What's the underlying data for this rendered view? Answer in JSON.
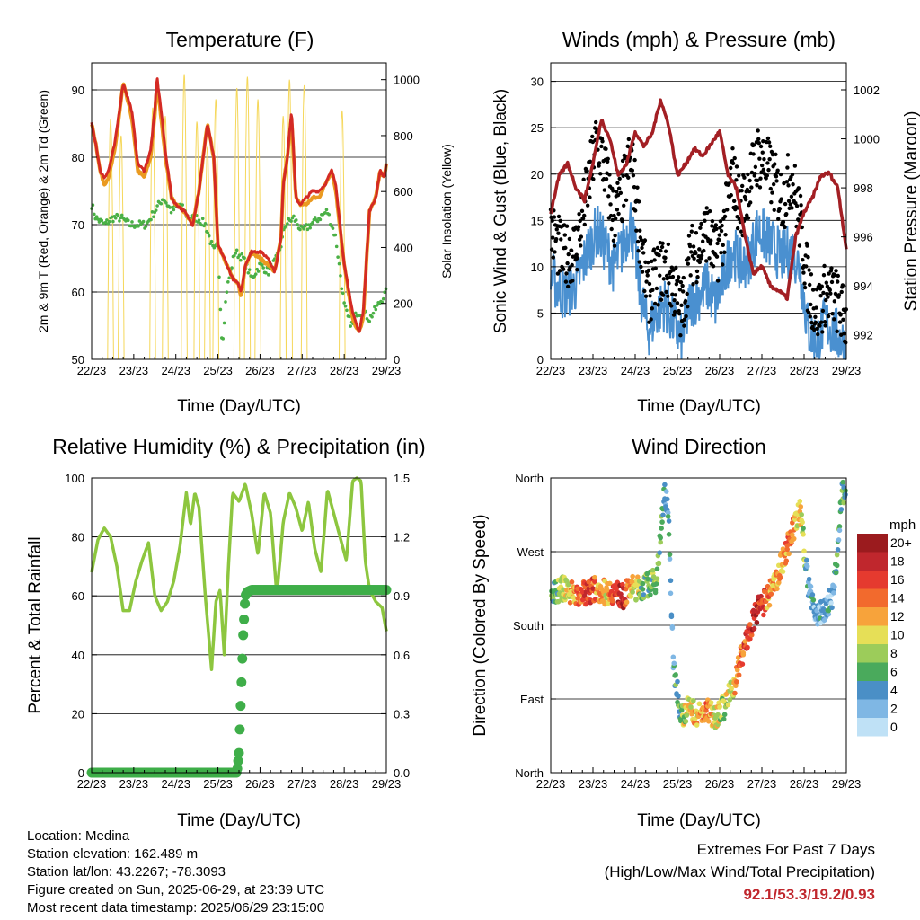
{
  "x_tick_labels": [
    "22/23",
    "23/23",
    "24/23",
    "25/23",
    "26/23",
    "27/23",
    "28/23",
    "29/23"
  ],
  "xlabel": "Time (Day/UTC)",
  "chart_data": [
    {
      "id": "temperature",
      "type": "line",
      "title": "Temperature (F)",
      "xlabel": "Time (Day/UTC)",
      "ylabel": "2m & 9m T (Red, Orange) & 2m Td (Green)",
      "ylabel_right": "Solar Insolation (Yellow)",
      "ylim": [
        50,
        94
      ],
      "yticks": [
        50,
        60,
        70,
        80,
        90
      ],
      "ylim_right": [
        0,
        1060
      ],
      "yticks_right": [
        0,
        200,
        400,
        600,
        800,
        1000
      ],
      "xlim": [
        0,
        7
      ],
      "grid": true,
      "series": [
        {
          "name": "2m T",
          "color": "#ea9a20",
          "x": [
            0,
            0.1,
            0.2,
            0.3,
            0.4,
            0.55,
            0.75,
            0.95,
            1.1,
            1.25,
            1.4,
            1.5,
            1.55,
            1.65,
            1.75,
            1.9,
            2.0,
            2.2,
            2.4,
            2.55,
            2.75,
            2.9,
            3.0,
            3.15,
            3.35,
            3.5,
            3.55,
            3.65,
            3.8,
            4.0,
            4.2,
            4.35,
            4.5,
            4.55,
            4.65,
            4.75,
            4.85,
            4.95,
            5.1,
            5.25,
            5.4,
            5.55,
            5.7,
            5.8,
            6.0,
            6.2,
            6.35,
            6.45,
            6.6,
            6.75,
            6.85,
            6.95,
            7.0
          ],
          "values": [
            85,
            82,
            78,
            76,
            77,
            81,
            91,
            86,
            78,
            77,
            80,
            86,
            91,
            86,
            80,
            74,
            73,
            72,
            70,
            75,
            85,
            80,
            67,
            65,
            62,
            61,
            59,
            64,
            66,
            65,
            64,
            63,
            68,
            76,
            80,
            86,
            74,
            73,
            73,
            74,
            74,
            76,
            78,
            75,
            64,
            56,
            54,
            56,
            72,
            74,
            78,
            77,
            79
          ]
        },
        {
          "name": "9m T",
          "color": "#d42a24",
          "x": [
            0,
            0.1,
            0.2,
            0.3,
            0.4,
            0.55,
            0.75,
            0.95,
            1.1,
            1.25,
            1.4,
            1.5,
            1.55,
            1.65,
            1.75,
            1.9,
            2.0,
            2.2,
            2.4,
            2.55,
            2.75,
            2.9,
            3.0,
            3.15,
            3.35,
            3.5,
            3.55,
            3.65,
            3.8,
            4.0,
            4.2,
            4.35,
            4.5,
            4.55,
            4.65,
            4.75,
            4.85,
            4.95,
            5.1,
            5.25,
            5.4,
            5.55,
            5.7,
            5.8,
            6.0,
            6.2,
            6.35,
            6.45,
            6.6,
            6.75,
            6.85,
            6.95,
            7.0
          ],
          "values": [
            85,
            82,
            78,
            77,
            78,
            82,
            91,
            87,
            79,
            78,
            81,
            87,
            92,
            87,
            81,
            74,
            73,
            72,
            70,
            75,
            85,
            80,
            67,
            65,
            62,
            61,
            60,
            64,
            66,
            66,
            65,
            63,
            68,
            76,
            80,
            87,
            74,
            73,
            74,
            75,
            75,
            76,
            78,
            76,
            64,
            57,
            54,
            57,
            72,
            74,
            78,
            77,
            79
          ]
        },
        {
          "name": "2m Td",
          "color": "#4ab046",
          "x": [
            0,
            0.1,
            0.3,
            0.5,
            0.7,
            0.9,
            1.1,
            1.3,
            1.5,
            1.7,
            1.9,
            2.1,
            2.3,
            2.5,
            2.7,
            2.8,
            2.9,
            3.0,
            3.1,
            3.2,
            3.4,
            3.6,
            3.8,
            4.0,
            4.2,
            4.4,
            4.5,
            4.6,
            4.8,
            5.0,
            5.2,
            5.4,
            5.6,
            5.8,
            6.0,
            6.1,
            6.2,
            6.3,
            6.45,
            6.6,
            6.8,
            7.0
          ],
          "values": [
            73,
            71,
            70,
            71,
            71,
            70,
            70,
            70,
            72,
            74,
            72,
            73,
            71,
            71,
            70,
            68,
            66,
            67,
            52,
            60,
            66,
            65,
            62,
            64,
            63,
            65,
            67,
            70,
            71,
            69,
            70,
            71,
            72,
            68,
            58,
            56,
            55,
            57,
            57,
            56,
            58,
            60
          ]
        },
        {
          "name": "Solar Insolation",
          "axis": "right",
          "color": "#f5d75a",
          "peaks": [
            860,
            800,
            900,
            870,
            1020,
            850,
            760,
            930,
            970,
            1010,
            930,
            870,
            1000,
            980,
            890
          ],
          "peak_x": [
            0.45,
            0.7,
            1.45,
            1.75,
            2.2,
            2.5,
            2.75,
            2.95,
            3.45,
            3.7,
            3.95,
            4.55,
            4.7,
            5.05,
            5.95
          ]
        }
      ]
    },
    {
      "id": "winds",
      "type": "scatter",
      "title": "Winds (mph) & Pressure (mb)",
      "xlabel": "Time (Day/UTC)",
      "ylabel": "Sonic Wind & Gust (Blue, Black)",
      "ylabel_right": "Station Pressure (Maroon)",
      "ylim": [
        0,
        32
      ],
      "yticks": [
        0,
        5,
        10,
        15,
        20,
        25,
        30
      ],
      "ylim_right": [
        991,
        1003.1
      ],
      "yticks_right": [
        992,
        994,
        996,
        998,
        1000,
        1002
      ],
      "xlim": [
        0,
        7
      ],
      "grid": true,
      "series": [
        {
          "name": "Sonic Wind",
          "color": "#4a90d0",
          "x": [
            0,
            0.3,
            0.6,
            0.9,
            1.1,
            1.3,
            1.5,
            1.7,
            1.9,
            2.1,
            2.3,
            2.5,
            2.7,
            2.9,
            3.1,
            3.3,
            3.5,
            3.7,
            3.9,
            4.1,
            4.3,
            4.5,
            4.7,
            4.9,
            5.1,
            5.3,
            5.5,
            5.7,
            5.9,
            6.1,
            6.3,
            6.5,
            6.7,
            6.9,
            7.0
          ],
          "values": [
            9,
            7,
            8,
            12,
            14,
            12,
            10,
            12,
            15,
            8,
            3,
            5,
            6,
            4,
            2,
            6,
            7,
            8,
            6,
            9,
            12,
            10,
            11,
            14,
            13,
            12,
            11,
            12,
            10,
            3,
            2,
            4,
            3,
            2,
            1
          ]
        },
        {
          "name": "Gust",
          "color": "#000000",
          "x": [
            0,
            0.3,
            0.6,
            0.9,
            1.1,
            1.3,
            1.5,
            1.7,
            1.9,
            2.1,
            2.3,
            2.5,
            2.7,
            2.9,
            3.1,
            3.3,
            3.5,
            3.7,
            3.9,
            4.1,
            4.3,
            4.5,
            4.7,
            4.9,
            5.1,
            5.3,
            5.5,
            5.7,
            5.9,
            6.1,
            6.3,
            6.5,
            6.7,
            6.9,
            7.0
          ],
          "values": [
            14,
            11,
            12,
            19,
            24,
            20,
            15,
            18,
            22,
            14,
            7,
            9,
            10,
            8,
            5,
            11,
            12,
            14,
            11,
            14,
            20,
            16,
            19,
            22,
            21,
            19,
            17,
            20,
            15,
            8,
            5,
            7,
            7,
            5,
            4
          ]
        },
        {
          "name": "Station Pressure",
          "axis": "right",
          "color": "#a31f24",
          "x": [
            0,
            0.2,
            0.4,
            0.6,
            0.8,
            1.0,
            1.2,
            1.4,
            1.6,
            1.8,
            2.0,
            2.2,
            2.4,
            2.6,
            2.8,
            3.0,
            3.2,
            3.4,
            3.6,
            3.8,
            4.0,
            4.2,
            4.4,
            4.6,
            4.8,
            5.0,
            5.2,
            5.4,
            5.6,
            5.8,
            6.0,
            6.2,
            6.4,
            6.6,
            6.8,
            7.0
          ],
          "values": [
            997,
            998.5,
            999,
            998,
            997.5,
            999,
            1000.8,
            1000,
            998.5,
            999,
            1000.3,
            999.7,
            1000.2,
            1001.6,
            1000.5,
            998.5,
            999,
            999.6,
            999.3,
            999.8,
            1000.3,
            998.5,
            998,
            996,
            994.5,
            994.8,
            994,
            993.8,
            993.5,
            996,
            997,
            997.6,
            998.5,
            998.6,
            998,
            995.5
          ]
        }
      ]
    },
    {
      "id": "humidity",
      "type": "line",
      "title": "Relative Humidity (%) & Precipitation (in)",
      "xlabel": "Time (Day/UTC)",
      "ylabel": "Percent & Total Rainfall",
      "ylim": [
        0,
        100
      ],
      "yticks": [
        0,
        20,
        40,
        60,
        80,
        100
      ],
      "ylim_right": [
        0,
        1.5
      ],
      "yticks_right": [
        0.0,
        0.3,
        0.6,
        0.9,
        1.2,
        1.5
      ],
      "xlim": [
        0,
        7
      ],
      "grid": true,
      "series": [
        {
          "name": "Relative Humidity",
          "color": "#8dc63f",
          "x": [
            0,
            0.15,
            0.3,
            0.45,
            0.6,
            0.75,
            0.9,
            1.05,
            1.2,
            1.35,
            1.5,
            1.65,
            1.8,
            1.95,
            2.1,
            2.25,
            2.35,
            2.45,
            2.55,
            2.7,
            2.85,
            2.95,
            3.05,
            3.15,
            3.25,
            3.35,
            3.5,
            3.65,
            3.8,
            3.95,
            4.1,
            4.25,
            4.4,
            4.55,
            4.7,
            4.85,
            5.0,
            5.15,
            5.3,
            5.45,
            5.6,
            5.75,
            5.9,
            6.05,
            6.2,
            6.3,
            6.4,
            6.5,
            6.6,
            6.75,
            6.9,
            7.0
          ],
          "values": [
            68,
            79,
            83,
            80,
            70,
            55,
            55,
            65,
            72,
            78,
            60,
            55,
            58,
            65,
            77,
            95,
            84,
            95,
            90,
            60,
            35,
            58,
            62,
            40,
            70,
            95,
            92,
            98,
            88,
            74,
            95,
            88,
            60,
            85,
            95,
            90,
            82,
            92,
            76,
            68,
            96,
            88,
            80,
            72,
            99,
            100,
            99,
            72,
            62,
            58,
            56,
            48
          ]
        },
        {
          "name": "Total Precipitation",
          "axis": "right",
          "color": "#3fae49",
          "x": [
            0,
            2.0,
            3.0,
            3.45,
            3.5,
            3.55,
            3.6,
            3.65,
            3.7,
            3.8,
            4.5,
            5.5,
            6.5,
            7.0
          ],
          "values": [
            0,
            0,
            0,
            0,
            0.1,
            0.4,
            0.7,
            0.9,
            0.92,
            0.93,
            0.93,
            0.93,
            0.93,
            0.93
          ]
        }
      ]
    },
    {
      "id": "direction",
      "type": "scatter",
      "title": "Wind Direction",
      "xlabel": "Time (Day/UTC)",
      "ylabel": "Direction (Colored By Speed)",
      "yticks": [
        "North",
        "East",
        "South",
        "West",
        "North"
      ],
      "ylim": [
        0,
        360
      ],
      "xlim": [
        0,
        7
      ],
      "grid": true,
      "colorbar": {
        "title": "mph",
        "labels": [
          "20+",
          "18",
          "16",
          "14",
          "12",
          "10",
          "8",
          "6",
          "4",
          "2",
          "0"
        ],
        "colors": [
          "#9b1b1e",
          "#c0272d",
          "#e53a2f",
          "#f26a2d",
          "#f7a33b",
          "#e6df57",
          "#9ccc5a",
          "#4aaa5c",
          "#4a8fc6",
          "#7fb7e4",
          "#bfe1f6"
        ]
      },
      "series": [
        {
          "name": "direction_by_speed",
          "x": [
            0.1,
            0.3,
            0.5,
            0.7,
            0.9,
            1.1,
            1.3,
            1.5,
            1.7,
            1.9,
            2.1,
            2.3,
            2.5,
            2.7,
            2.75,
            2.8,
            2.9,
            3.1,
            3.3,
            3.5,
            3.7,
            3.9,
            4.1,
            4.3,
            4.5,
            4.7,
            4.9,
            5.1,
            5.3,
            5.5,
            5.7,
            5.9,
            6.1,
            6.3,
            6.5,
            6.7,
            6.9
          ],
          "values": [
            220,
            225,
            220,
            218,
            222,
            225,
            220,
            222,
            215,
            225,
            225,
            230,
            235,
            345,
            330,
            300,
            130,
            70,
            80,
            70,
            75,
            70,
            80,
            100,
            140,
            170,
            200,
            210,
            230,
            260,
            290,
            320,
            230,
            190,
            200,
            220,
            340
          ],
          "speeds": [
            6,
            10,
            12,
            14,
            16,
            13,
            10,
            16,
            18,
            12,
            8,
            6,
            8,
            4,
            3,
            4,
            3,
            8,
            10,
            12,
            14,
            10,
            8,
            10,
            14,
            16,
            18,
            14,
            12,
            12,
            14,
            10,
            4,
            3,
            2,
            4,
            5
          ]
        }
      ]
    }
  ],
  "info": {
    "location": "Location: Medina",
    "elevation": "Station elevation: 162.489 m",
    "latlon": "Station lat/lon: 43.2267; -78.3093",
    "created": "Figure created on Sun, 2025-06-29, at 23:39 UTC",
    "recent": "Most recent data timestamp: 2025/06/29 23:15:00"
  },
  "extremes": {
    "title": "Extremes For Past 7 Days",
    "subtitle": "(High/Low/Max Wind/Total Precipitation)",
    "values": "92.1/53.3/19.2/0.93"
  }
}
